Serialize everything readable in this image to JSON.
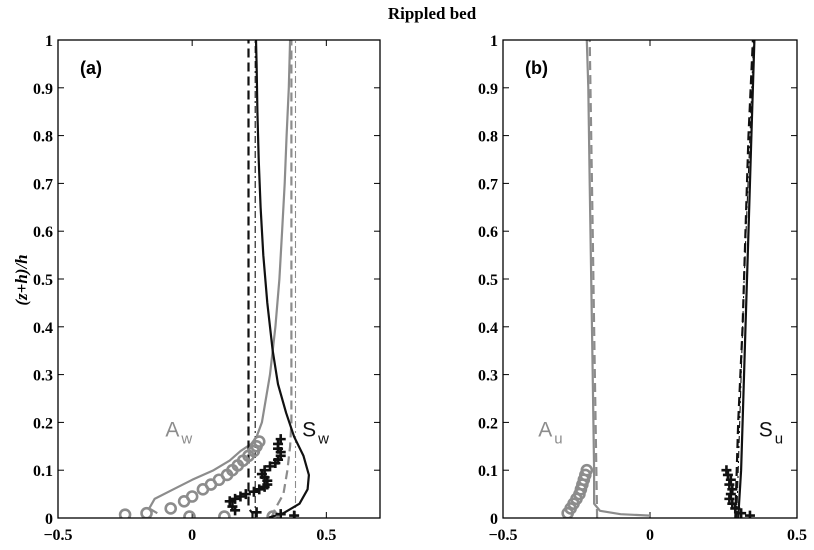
{
  "figure_title": "Rippled bed",
  "ylabel": "(z+h)/h",
  "colors": {
    "black": "#111111",
    "gray": "#8c8c8c",
    "axis": "#000000"
  },
  "chart_data": [
    {
      "panel": "(a)",
      "type": "line",
      "xlim": [
        -0.5,
        0.7
      ],
      "ylim": [
        0,
        1
      ],
      "xticks": [
        -0.5,
        0,
        0.5
      ],
      "xtick_labels": [
        "−0.5",
        "0",
        "0.5"
      ],
      "yticks": [
        0,
        0.1,
        0.2,
        0.3,
        0.4,
        0.5,
        0.6,
        0.7,
        0.8,
        0.9,
        1
      ],
      "ytick_labels": [
        "0",
        "0.1",
        "0.2",
        "0.3",
        "0.4",
        "0.5",
        "0.6",
        "0.7",
        "0.8",
        "0.9",
        "1"
      ],
      "annotations": [
        {
          "main": "A",
          "sub": "w",
          "x": -0.1,
          "y": 0.17,
          "color": "gray"
        },
        {
          "main": "S",
          "sub": "w",
          "x": 0.41,
          "y": 0.17,
          "color": "black"
        }
      ],
      "series": [
        {
          "style": "gray-solid",
          "points": [
            [
              -0.13,
              0.01
            ],
            [
              -0.16,
              0.02
            ],
            [
              -0.14,
              0.04
            ],
            [
              -0.07,
              0.06
            ],
            [
              0.0,
              0.08
            ],
            [
              0.08,
              0.1
            ],
            [
              0.14,
              0.12
            ],
            [
              0.18,
              0.14
            ],
            [
              0.22,
              0.155
            ],
            [
              0.24,
              0.17
            ],
            [
              0.26,
              0.2
            ],
            [
              0.29,
              0.3
            ],
            [
              0.31,
              0.4
            ],
            [
              0.325,
              0.5
            ],
            [
              0.335,
              0.6
            ],
            [
              0.345,
              0.7
            ],
            [
              0.352,
              0.8
            ],
            [
              0.36,
              0.9
            ],
            [
              0.365,
              1.0
            ]
          ]
        },
        {
          "style": "gray-dashed",
          "points": [
            [
              0.295,
              0.0
            ],
            [
              0.31,
              0.02
            ],
            [
              0.34,
              0.05
            ],
            [
              0.355,
              0.1
            ],
            [
              0.365,
              0.15
            ],
            [
              0.37,
              0.2
            ],
            [
              0.37,
              0.4
            ],
            [
              0.37,
              0.6
            ],
            [
              0.37,
              0.8
            ],
            [
              0.37,
              1.0
            ]
          ]
        },
        {
          "style": "gray-dashdot",
          "points": [
            [
              0.385,
              0.0
            ],
            [
              0.385,
              1.0
            ]
          ]
        },
        {
          "style": "black-solid",
          "points": [
            [
              0.28,
              0.0
            ],
            [
              0.34,
              0.01
            ],
            [
              0.4,
              0.03
            ],
            [
              0.43,
              0.06
            ],
            [
              0.435,
              0.09
            ],
            [
              0.415,
              0.13
            ],
            [
              0.38,
              0.17
            ],
            [
              0.35,
              0.22
            ],
            [
              0.32,
              0.28
            ],
            [
              0.3,
              0.35
            ],
            [
              0.28,
              0.45
            ],
            [
              0.265,
              0.55
            ],
            [
              0.255,
              0.65
            ],
            [
              0.248,
              0.75
            ],
            [
              0.243,
              0.85
            ],
            [
              0.24,
              0.95
            ],
            [
              0.238,
              1.0
            ]
          ]
        },
        {
          "style": "black-dashed",
          "points": [
            [
              0.225,
              0.0
            ],
            [
              0.225,
              0.01
            ],
            [
              0.21,
              0.02
            ],
            [
              0.21,
              0.3
            ],
            [
              0.21,
              0.6
            ],
            [
              0.21,
              1.0
            ]
          ]
        },
        {
          "style": "black-dashdot",
          "points": [
            [
              0.235,
              0.0
            ],
            [
              0.235,
              1.0
            ]
          ]
        },
        {
          "style": "gray-circles",
          "points": [
            [
              -0.25,
              0.007
            ],
            [
              -0.17,
              0.01
            ],
            [
              -0.08,
              0.02
            ],
            [
              -0.03,
              0.035
            ],
            [
              0.0,
              0.045
            ],
            [
              0.04,
              0.06
            ],
            [
              0.07,
              0.07
            ],
            [
              0.1,
              0.08
            ],
            [
              0.13,
              0.09
            ],
            [
              0.15,
              0.1
            ],
            [
              0.17,
              0.11
            ],
            [
              0.19,
              0.12
            ],
            [
              0.21,
              0.13
            ],
            [
              0.23,
              0.14
            ],
            [
              0.24,
              0.15
            ],
            [
              0.25,
              0.16
            ],
            [
              -0.01,
              0.003
            ],
            [
              0.12,
              0.003
            ],
            [
              0.3,
              0.003
            ]
          ]
        },
        {
          "style": "black-plus",
          "points": [
            [
              0.38,
              0.005
            ],
            [
              0.33,
              0.008
            ],
            [
              0.24,
              0.012
            ],
            [
              0.16,
              0.016
            ],
            [
              0.15,
              0.024
            ],
            [
              0.14,
              0.035
            ],
            [
              0.16,
              0.04
            ],
            [
              0.18,
              0.045
            ],
            [
              0.2,
              0.05
            ],
            [
              0.23,
              0.055
            ],
            [
              0.25,
              0.06
            ],
            [
              0.27,
              0.065
            ],
            [
              0.28,
              0.07
            ],
            [
              0.28,
              0.078
            ],
            [
              0.27,
              0.085
            ],
            [
              0.26,
              0.092
            ],
            [
              0.27,
              0.1
            ],
            [
              0.29,
              0.108
            ],
            [
              0.31,
              0.115
            ],
            [
              0.32,
              0.122
            ],
            [
              0.33,
              0.13
            ],
            [
              0.33,
              0.138
            ],
            [
              0.32,
              0.145
            ],
            [
              0.32,
              0.155
            ],
            [
              0.33,
              0.165
            ]
          ]
        }
      ]
    },
    {
      "panel": "(b)",
      "type": "line",
      "xlim": [
        -0.5,
        0.5
      ],
      "ylim": [
        0,
        1
      ],
      "xticks": [
        -0.5,
        0,
        0.5
      ],
      "xtick_labels": [
        "−0.5",
        "0",
        "0.5"
      ],
      "yticks": [
        0,
        0.1,
        0.2,
        0.3,
        0.4,
        0.5,
        0.6,
        0.7,
        0.8,
        0.9,
        1
      ],
      "ytick_labels": [
        "0",
        "0.1",
        "0.2",
        "0.3",
        "0.4",
        "0.5",
        "0.6",
        "0.7",
        "0.8",
        "0.9",
        "1"
      ],
      "annotations": [
        {
          "main": "A",
          "sub": "u",
          "x": -0.38,
          "y": 0.17,
          "color": "gray"
        },
        {
          "main": "S",
          "sub": "u",
          "x": 0.37,
          "y": 0.17,
          "color": "black"
        }
      ],
      "series": [
        {
          "style": "gray-solid",
          "points": [
            [
              0.0,
              0.005
            ],
            [
              -0.1,
              0.008
            ],
            [
              -0.17,
              0.015
            ],
            [
              -0.19,
              0.03
            ],
            [
              -0.19,
              0.1
            ],
            [
              -0.195,
              0.3
            ],
            [
              -0.2,
              0.5
            ],
            [
              -0.205,
              0.7
            ],
            [
              -0.21,
              0.9
            ],
            [
              -0.215,
              1.0
            ]
          ]
        },
        {
          "style": "gray-dashed",
          "points": [
            [
              -0.18,
              0.0
            ],
            [
              -0.185,
              0.2
            ],
            [
              -0.19,
              0.4
            ],
            [
              -0.195,
              0.6
            ],
            [
              -0.2,
              0.8
            ],
            [
              -0.205,
              1.0
            ]
          ]
        },
        {
          "style": "black-solid",
          "points": [
            [
              0.3,
              0.0
            ],
            [
              0.31,
              0.1
            ],
            [
              0.315,
              0.2
            ],
            [
              0.325,
              0.4
            ],
            [
              0.335,
              0.6
            ],
            [
              0.345,
              0.8
            ],
            [
              0.355,
              1.0
            ]
          ]
        },
        {
          "style": "black-dashed",
          "points": [
            [
              0.29,
              0.0
            ],
            [
              0.3,
              0.2
            ],
            [
              0.315,
              0.4
            ],
            [
              0.325,
              0.6
            ],
            [
              0.335,
              0.8
            ],
            [
              0.35,
              1.0
            ]
          ]
        },
        {
          "style": "black-dashdot",
          "points": [
            [
              0.295,
              0.0
            ],
            [
              0.305,
              0.2
            ],
            [
              0.32,
              0.5
            ],
            [
              0.34,
              0.8
            ],
            [
              0.352,
              1.0
            ]
          ]
        },
        {
          "style": "gray-circles",
          "points": [
            [
              -0.28,
              0.01
            ],
            [
              -0.27,
              0.02
            ],
            [
              -0.26,
              0.03
            ],
            [
              -0.25,
              0.04
            ],
            [
              -0.24,
              0.05
            ],
            [
              -0.235,
              0.06
            ],
            [
              -0.23,
              0.07
            ],
            [
              -0.225,
              0.08
            ],
            [
              -0.22,
              0.09
            ],
            [
              -0.215,
              0.1
            ]
          ]
        },
        {
          "style": "black-plus",
          "points": [
            [
              0.34,
              0.005
            ],
            [
              0.31,
              0.01
            ],
            [
              0.29,
              0.02
            ],
            [
              0.28,
              0.03
            ],
            [
              0.27,
              0.04
            ],
            [
              0.275,
              0.05
            ],
            [
              0.28,
              0.06
            ],
            [
              0.27,
              0.07
            ],
            [
              0.275,
              0.08
            ],
            [
              0.265,
              0.09
            ],
            [
              0.26,
              0.1
            ]
          ]
        }
      ]
    }
  ]
}
